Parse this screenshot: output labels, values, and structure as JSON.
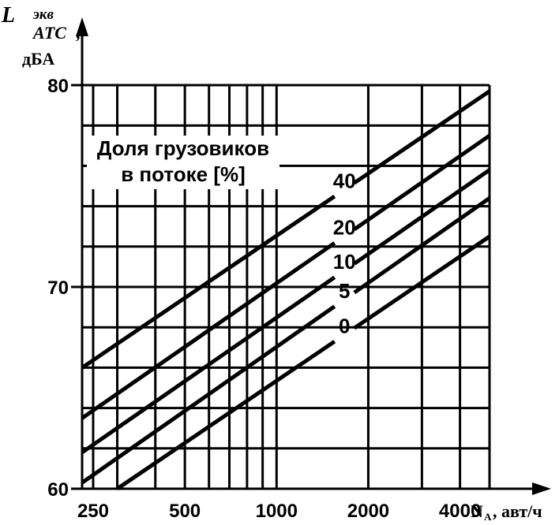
{
  "chart_data": {
    "type": "line",
    "title": "",
    "ylabel": {
      "symbol": "L",
      "sup": "экв",
      "sub": "АТС",
      "sep": ",",
      "unit": "дБА"
    },
    "xlabel": {
      "symbol": "N",
      "sub": "А",
      "unit": ", авт/ч"
    },
    "x_scale": "log",
    "xlim": [
      230,
      5000
    ],
    "ylim": [
      60,
      80
    ],
    "x_gridlines": [
      250,
      300,
      400,
      500,
      600,
      700,
      800,
      900,
      1000,
      2000,
      3000,
      4000,
      5000
    ],
    "y_gridlines": [
      60,
      62,
      64,
      66,
      68,
      70,
      72,
      74,
      76,
      78,
      80
    ],
    "x_tick_labels": [
      "250",
      "500",
      "1000",
      "2000",
      "4000"
    ],
    "y_tick_labels": [
      "60",
      "70",
      "80"
    ],
    "legend_title": [
      "Доля грузовиков",
      "в потоке [%]"
    ],
    "label_gap_x": [
      1550,
      1800
    ],
    "series": [
      {
        "name": "40",
        "x": [
          230,
          5000
        ],
        "y": [
          66.0,
          79.7
        ]
      },
      {
        "name": "20",
        "x": [
          230,
          5000
        ],
        "y": [
          63.5,
          77.5
        ]
      },
      {
        "name": "10",
        "x": [
          230,
          5000
        ],
        "y": [
          61.8,
          75.8
        ]
      },
      {
        "name": "5",
        "x": [
          230,
          5000
        ],
        "y": [
          60.3,
          74.4
        ]
      },
      {
        "name": "0",
        "x": [
          300,
          5000
        ],
        "y": [
          60.0,
          72.5
        ]
      }
    ]
  }
}
